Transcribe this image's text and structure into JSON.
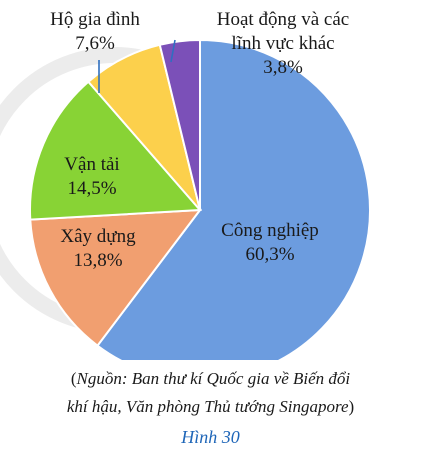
{
  "chart_data": {
    "type": "pie",
    "slices": [
      {
        "label": "Công nghiệp",
        "value": 60.3,
        "display": "60,3%",
        "color": "#6c9cdf"
      },
      {
        "label": "Xây dựng",
        "value": 13.8,
        "display": "13,8%",
        "color": "#f19f70"
      },
      {
        "label": "Vận tải",
        "value": 14.5,
        "display": "14,5%",
        "color": "#88d335"
      },
      {
        "label": "Hộ gia đình",
        "value": 7.6,
        "display": "7,6%",
        "color": "#fcd04c"
      },
      {
        "label": "Hoạt động và các\nlĩnh vực khác",
        "value": 3.8,
        "display": "3,8%",
        "color": "#7b50b8"
      }
    ]
  },
  "source": {
    "open_paren": "(",
    "line1": "Nguồn: Ban thư kí Quốc gia về Biến đổi",
    "line2": "khí hậu, Văn phòng Thủ tướng Singapore",
    "close_paren": ")"
  },
  "figure_caption": "Hình 30"
}
